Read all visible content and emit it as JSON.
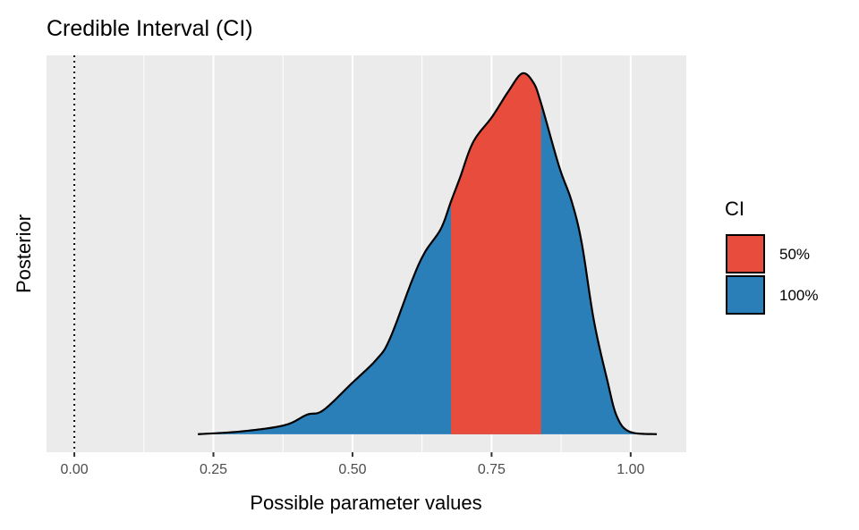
{
  "chart_data": {
    "type": "area",
    "title": "Credible Interval (CI)",
    "xlabel": "Possible parameter values",
    "ylabel": "Posterior",
    "xlim": [
      -0.05,
      1.1
    ],
    "ylim": [
      -0.05,
      1.05
    ],
    "x_ticks": [
      0,
      0.25,
      0.5,
      0.75,
      1
    ],
    "x_tick_labels": [
      "0.00",
      "0.25",
      "0.50",
      "0.75",
      "1.00"
    ],
    "x_minor_ticks": [
      0.125,
      0.375,
      0.625,
      0.875
    ],
    "y_ticks": [],
    "grid": true,
    "reference_line": {
      "x": 0,
      "style": "dotted"
    },
    "density": {
      "x": [
        0.222,
        0.302,
        0.378,
        0.418,
        0.447,
        0.498,
        0.543,
        0.567,
        0.608,
        0.63,
        0.659,
        0.677,
        0.693,
        0.717,
        0.751,
        0.78,
        0.805,
        0.825,
        0.839,
        0.871,
        0.894,
        0.912,
        0.934,
        0.958,
        0.975,
        0.998,
        1.047
      ],
      "y": [
        0,
        0.008,
        0.025,
        0.054,
        0.066,
        0.14,
        0.207,
        0.264,
        0.43,
        0.504,
        0.57,
        0.645,
        0.71,
        0.81,
        0.88,
        0.95,
        1.0,
        0.975,
        0.917,
        0.744,
        0.645,
        0.53,
        0.314,
        0.149,
        0.05,
        0.007,
        0
      ]
    },
    "intervals": [
      {
        "name": "50%",
        "low": 0.677,
        "high": 0.839,
        "color": "#E74C3C"
      },
      {
        "name": "100%",
        "low": 0.222,
        "high": 1.047,
        "color": "#2A7FB8"
      }
    ],
    "legend": {
      "title": "CI",
      "position": "right",
      "entries": [
        "50%",
        "100%"
      ]
    },
    "panel_bg": "#EBEBEB"
  }
}
